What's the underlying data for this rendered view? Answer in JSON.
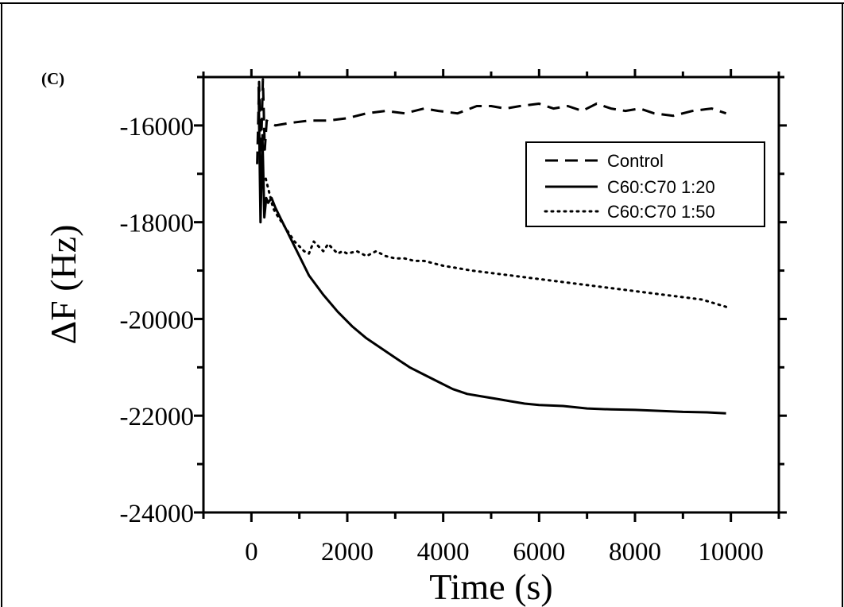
{
  "chart_data": {
    "type": "line",
    "panel_label": "(C)",
    "xlabel": "Time (s)",
    "ylabel": "ΔF (Hz)",
    "xlim": [
      -1000,
      11000
    ],
    "ylim": [
      -24000,
      -15000
    ],
    "xticks": [
      0,
      2000,
      4000,
      6000,
      8000,
      10000
    ],
    "yticks": [
      -16000,
      -18000,
      -20000,
      -22000,
      -24000
    ],
    "xtick_labels": [
      "0",
      "2000",
      "4000",
      "6000",
      "8000",
      "10000"
    ],
    "ytick_labels": [
      "-16000",
      "-18000",
      "-20000",
      "-22000",
      "-24000"
    ],
    "grid": false,
    "legend_position": "top-right",
    "series": [
      {
        "name": "Control",
        "style": "dashed",
        "color": "#000000",
        "x": [
          120,
          160,
          200,
          240,
          280,
          320,
          500,
          800,
          1200,
          1600,
          2000,
          2400,
          2800,
          3200,
          3600,
          3900,
          4300,
          4700,
          5000,
          5300,
          5600,
          6000,
          6300,
          6600,
          6900,
          7200,
          7500,
          7800,
          8100,
          8400,
          8800,
          9200,
          9600,
          9900
        ],
        "y": [
          -16800,
          -15100,
          -16600,
          -15050,
          -16500,
          -15900,
          -16000,
          -15950,
          -15900,
          -15900,
          -15850,
          -15750,
          -15700,
          -15750,
          -15650,
          -15700,
          -15750,
          -15600,
          -15600,
          -15650,
          -15600,
          -15550,
          -15650,
          -15600,
          -15700,
          -15550,
          -15650,
          -15700,
          -15650,
          -15750,
          -15800,
          -15700,
          -15650,
          -15750
        ]
      },
      {
        "name": "C60:C70 1:20",
        "style": "solid",
        "color": "#000000",
        "x": [
          150,
          190,
          230,
          270,
          310,
          350,
          420,
          500,
          600,
          800,
          1000,
          1200,
          1500,
          1800,
          2100,
          2400,
          2700,
          3000,
          3300,
          3600,
          3900,
          4200,
          4500,
          4800,
          5100,
          5400,
          5700,
          6000,
          6500,
          7000,
          7500,
          8000,
          8500,
          9000,
          9500,
          9900
        ],
        "y": [
          -15200,
          -18000,
          -16200,
          -17900,
          -17500,
          -17600,
          -17500,
          -17700,
          -17900,
          -18300,
          -18700,
          -19100,
          -19500,
          -19850,
          -20150,
          -20400,
          -20600,
          -20800,
          -21000,
          -21150,
          -21300,
          -21450,
          -21550,
          -21600,
          -21650,
          -21700,
          -21750,
          -21780,
          -21800,
          -21850,
          -21870,
          -21880,
          -21900,
          -21920,
          -21930,
          -21950
        ]
      },
      {
        "name": "C60:C70 1:50",
        "style": "dotted",
        "color": "#000000",
        "x": [
          300,
          350,
          400,
          450,
          500,
          600,
          700,
          800,
          900,
          1000,
          1100,
          1200,
          1300,
          1400,
          1500,
          1600,
          1700,
          1800,
          1900,
          2000,
          2200,
          2400,
          2600,
          2800,
          3000,
          3200,
          3400,
          3600,
          3800,
          4000,
          4300,
          4600,
          5000,
          5400,
          5800,
          6200,
          6600,
          7000,
          7400,
          7800,
          8200,
          8600,
          9000,
          9400,
          9900
        ],
        "y": [
          -17100,
          -17300,
          -17500,
          -17700,
          -17800,
          -17950,
          -18100,
          -18250,
          -18400,
          -18500,
          -18600,
          -18650,
          -18400,
          -18500,
          -18600,
          -18450,
          -18550,
          -18650,
          -18600,
          -18650,
          -18600,
          -18700,
          -18600,
          -18700,
          -18750,
          -18750,
          -18800,
          -18800,
          -18850,
          -18900,
          -18950,
          -19000,
          -19050,
          -19100,
          -19150,
          -19200,
          -19250,
          -19300,
          -19350,
          -19400,
          -19450,
          -19500,
          -19550,
          -19600,
          -19750
        ]
      }
    ]
  }
}
